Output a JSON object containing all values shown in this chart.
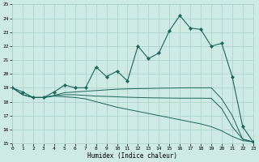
{
  "xlabel": "Humidex (Indice chaleur)",
  "xlim": [
    0,
    23
  ],
  "ylim": [
    15,
    25
  ],
  "yticks": [
    15,
    16,
    17,
    18,
    19,
    20,
    21,
    22,
    23,
    24,
    25
  ],
  "xticks": [
    0,
    1,
    2,
    3,
    4,
    5,
    6,
    7,
    8,
    9,
    10,
    11,
    12,
    13,
    14,
    15,
    16,
    17,
    18,
    19,
    20,
    21,
    22,
    23
  ],
  "bg_color": "#ceeae5",
  "grid_color": "#aacfc9",
  "line_color": "#1a6659",
  "main_series": [
    19.0,
    18.7,
    18.3,
    18.3,
    18.7,
    19.2,
    19.0,
    19.0,
    20.5,
    19.8,
    20.2,
    19.5,
    22.0,
    21.1,
    21.5,
    23.1,
    24.2,
    23.3,
    23.2,
    22.0,
    22.2,
    19.8,
    16.2,
    15.1
  ],
  "line2": [
    19.0,
    18.5,
    18.3,
    18.3,
    18.45,
    18.65,
    18.7,
    18.75,
    18.8,
    18.85,
    18.9,
    18.92,
    18.94,
    18.95,
    18.97,
    18.98,
    18.99,
    19.0,
    19.0,
    19.0,
    18.2,
    17.0,
    15.3,
    15.1
  ],
  "line3": [
    19.0,
    18.5,
    18.3,
    18.3,
    18.43,
    18.5,
    18.5,
    18.45,
    18.4,
    18.38,
    18.35,
    18.32,
    18.3,
    18.28,
    18.27,
    18.26,
    18.25,
    18.25,
    18.25,
    18.24,
    17.5,
    16.2,
    15.3,
    15.1
  ],
  "line4": [
    19.0,
    18.5,
    18.3,
    18.3,
    18.4,
    18.35,
    18.3,
    18.2,
    18.0,
    17.8,
    17.6,
    17.45,
    17.3,
    17.15,
    17.0,
    16.85,
    16.7,
    16.55,
    16.4,
    16.2,
    15.9,
    15.5,
    15.2,
    15.1
  ]
}
